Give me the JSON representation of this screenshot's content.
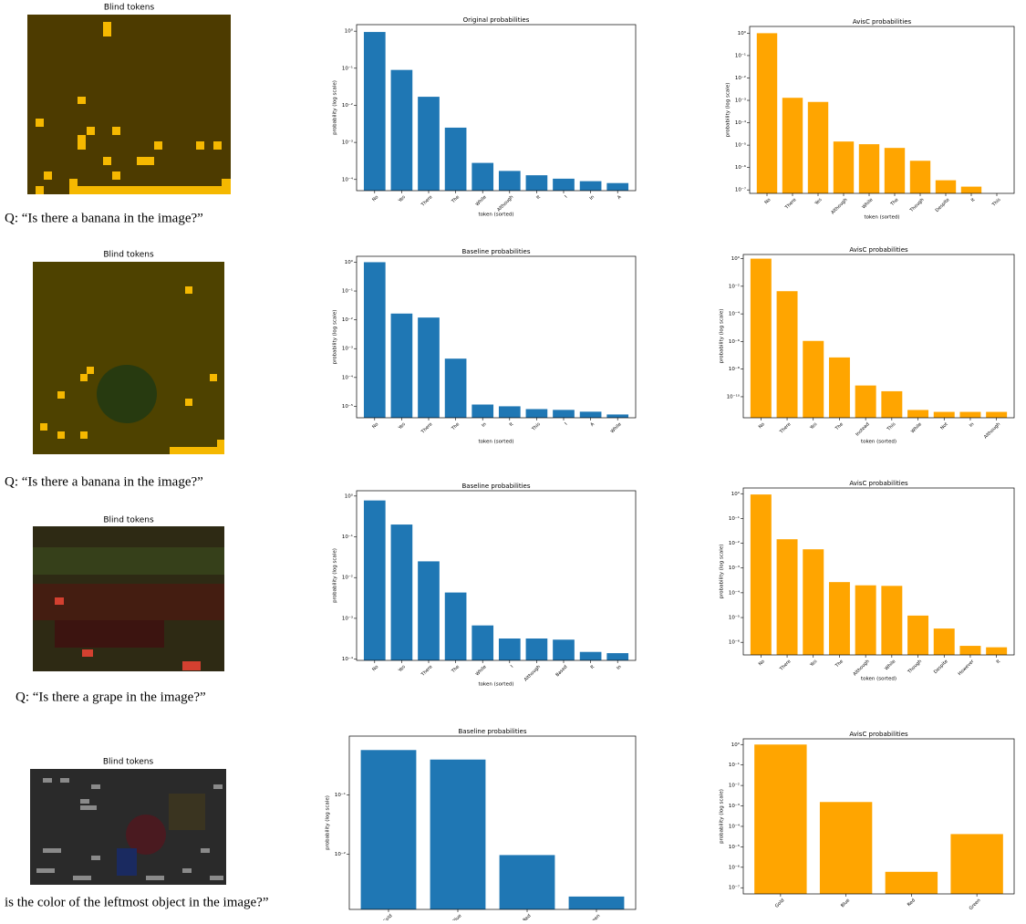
{
  "panels": [
    {
      "title": "Blind tokens",
      "question": "Q: “Is there a banana in the image?”"
    },
    {
      "title": "Blind tokens",
      "question": "Q: “Is there a banana in the image?”"
    },
    {
      "title": "Blind tokens",
      "question": "Q: “Is there a grape in the image?”"
    },
    {
      "title": "Blind tokens",
      "question": "is the color of the leftmost object in the image?”"
    }
  ],
  "chart_data": [
    {
      "type": "bar",
      "title": "Original probabilities",
      "ylabel": "probability (log scale)",
      "xlabel": "token (sorted)",
      "color": "#1f77b4",
      "log": true,
      "categories": [
        "No",
        "Yes",
        "There",
        "The",
        "While",
        "Although",
        "It",
        "I",
        "In",
        "A"
      ],
      "values": [
        0.95,
        0.09,
        0.017,
        0.0025,
        0.00028,
        0.00017,
        0.00013,
        0.000105,
        9e-05,
        8e-05
      ],
      "ylim": [
        5e-05,
        1.5
      ],
      "yticks": [
        {
          "value": 1,
          "label": "10⁰"
        },
        {
          "value": 0.1,
          "label": "10⁻¹"
        },
        {
          "value": 0.01,
          "label": "10⁻²"
        },
        {
          "value": 0.001,
          "label": "10⁻³"
        },
        {
          "value": 0.0001,
          "label": "10⁻⁴"
        }
      ]
    },
    {
      "type": "bar",
      "title": "AvisC probabilities",
      "ylabel": "probability (log scale)",
      "xlabel": "token (sorted)",
      "color": "#ffa500",
      "log": true,
      "categories": [
        "No",
        "There",
        "Yes",
        "Although",
        "While",
        "The",
        "Though",
        "Despite",
        "It",
        "This"
      ],
      "values": [
        1.0,
        0.0013,
        0.00085,
        1.45e-05,
        1.1e-05,
        7.5e-06,
        2e-06,
        2.7e-07,
        1.4e-07,
        6e-08
      ],
      "ylim": [
        7e-08,
        2
      ],
      "yticks": [
        {
          "value": 1,
          "label": "10⁰"
        },
        {
          "value": 0.1,
          "label": "10⁻¹"
        },
        {
          "value": 0.01,
          "label": "10⁻²"
        },
        {
          "value": 0.001,
          "label": "10⁻³"
        },
        {
          "value": 0.0001,
          "label": "10⁻⁴"
        },
        {
          "value": 1e-05,
          "label": "10⁻⁵"
        },
        {
          "value": 1e-06,
          "label": "10⁻⁶"
        },
        {
          "value": 1e-07,
          "label": "10⁻⁷"
        }
      ]
    },
    {
      "type": "bar",
      "title": "Baseline probabilities",
      "ylabel": "probability (log scale)",
      "xlabel": "token (sorted)",
      "color": "#1f77b4",
      "log": true,
      "categories": [
        "No",
        "Yes",
        "There",
        "The",
        "In",
        "It",
        "This",
        "I",
        "A",
        "While"
      ],
      "values": [
        1.0,
        0.0165,
        0.012,
        0.00045,
        1.15e-05,
        1e-05,
        8e-06,
        7.5e-06,
        6.5e-06,
        5.2e-06
      ],
      "ylim": [
        4e-06,
        1.6
      ],
      "yticks": [
        {
          "value": 1,
          "label": "10⁰"
        },
        {
          "value": 0.1,
          "label": "10⁻¹"
        },
        {
          "value": 0.01,
          "label": "10⁻²"
        },
        {
          "value": 0.001,
          "label": "10⁻³"
        },
        {
          "value": 0.0001,
          "label": "10⁻⁴"
        },
        {
          "value": 1e-05,
          "label": "10⁻⁵"
        }
      ]
    },
    {
      "type": "bar",
      "title": "AvisC probabilities",
      "ylabel": "probability (log scale)",
      "xlabel": "token (sorted)",
      "color": "#ffa500",
      "log": true,
      "categories": [
        "No",
        "There",
        "Yes",
        "The",
        "Instead",
        "This",
        "While",
        "Not",
        "In",
        "Although"
      ],
      "values": [
        1.0,
        0.0044,
        1.1e-06,
        7e-08,
        6.5e-10,
        2.5e-10,
        1.1e-11,
        8e-12,
        8e-12,
        8e-12
      ],
      "ylim": [
        3e-12,
        2
      ],
      "yticks": [
        {
          "value": 1,
          "label": "10⁰"
        },
        {
          "value": 0.01,
          "label": "10⁻²"
        },
        {
          "value": 0.0001,
          "label": "10⁻⁴"
        },
        {
          "value": 1e-06,
          "label": "10⁻⁶"
        },
        {
          "value": 1e-08,
          "label": "10⁻⁸"
        },
        {
          "value": 1e-10,
          "label": "10⁻¹⁰"
        }
      ]
    },
    {
      "type": "bar",
      "title": "Baseline probabilities",
      "ylabel": "probability (log scale)",
      "xlabel": "token (sorted)",
      "color": "#1f77b4",
      "log": true,
      "categories": [
        "No",
        "Yes",
        "There",
        "The",
        "While",
        "I",
        "Although",
        "Based",
        "It",
        "In"
      ],
      "values": [
        0.78,
        0.2,
        0.025,
        0.0043,
        0.00067,
        0.00032,
        0.00032,
        0.0003,
        0.00015,
        0.00014
      ],
      "ylim": [
        9.3e-05,
        1.35
      ],
      "yticks": [
        {
          "value": 1,
          "label": "10⁰"
        },
        {
          "value": 0.1,
          "label": "10⁻¹"
        },
        {
          "value": 0.01,
          "label": "10⁻²"
        },
        {
          "value": 0.001,
          "label": "10⁻³"
        },
        {
          "value": 0.0001,
          "label": "10⁻⁴"
        }
      ]
    },
    {
      "type": "bar",
      "title": "AvisC probabilities",
      "ylabel": "probability (log scale)",
      "xlabel": "token (sorted)",
      "color": "#ffa500",
      "log": true,
      "categories": [
        "No",
        "There",
        "Yes",
        "The",
        "Although",
        "While",
        "Though",
        "Despite",
        "However",
        "It"
      ],
      "values": [
        0.93,
        0.0145,
        0.0057,
        0.00027,
        0.0002,
        0.00019,
        1.2e-05,
        3.6e-06,
        7.2e-07,
        6.3e-07
      ],
      "ylim": [
        3.1e-07,
        1.7
      ],
      "yticks": [
        {
          "value": 1,
          "label": "10⁰"
        },
        {
          "value": 0.1,
          "label": "10⁻¹"
        },
        {
          "value": 0.01,
          "label": "10⁻²"
        },
        {
          "value": 0.001,
          "label": "10⁻³"
        },
        {
          "value": 0.0001,
          "label": "10⁻⁴"
        },
        {
          "value": 1e-05,
          "label": "10⁻⁵"
        },
        {
          "value": 1e-06,
          "label": "10⁻⁶"
        }
      ]
    },
    {
      "type": "bar",
      "title": "Baseline probabilities",
      "ylabel": "probability (log scale)",
      "color": "#1f77b4",
      "log": true,
      "categories": [
        "Gold",
        "Blue",
        "Red",
        "Green"
      ],
      "values": [
        0.58,
        0.4,
        0.0096,
        0.0019
      ],
      "ylim": [
        0.00115,
        1
      ],
      "yticks": [
        {
          "value": 0.1,
          "label": "10⁻¹"
        },
        {
          "value": 0.01,
          "label": "10⁻²"
        }
      ]
    },
    {
      "type": "bar",
      "title": "AvisC probabilities",
      "ylabel": "probability (log scale)",
      "color": "#ffa500",
      "log": true,
      "categories": [
        "Gold",
        "Blue",
        "Red",
        "Green"
      ],
      "values": [
        1.0,
        0.00155,
        6e-07,
        4.2e-05
      ],
      "ylim": [
        5e-08,
        1.9
      ],
      "yticks": [
        {
          "value": 1,
          "label": "10⁰"
        },
        {
          "value": 0.1,
          "label": "10⁻¹"
        },
        {
          "value": 0.01,
          "label": "10⁻²"
        },
        {
          "value": 0.001,
          "label": "10⁻³"
        },
        {
          "value": 0.0001,
          "label": "10⁻⁴"
        },
        {
          "value": 1e-05,
          "label": "10⁻⁵"
        },
        {
          "value": 1e-06,
          "label": "10⁻⁶"
        },
        {
          "value": 1e-07,
          "label": "10⁻⁷"
        }
      ]
    }
  ]
}
